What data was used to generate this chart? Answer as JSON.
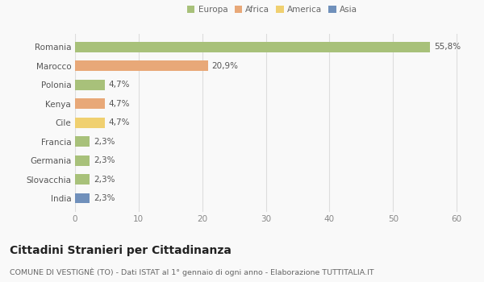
{
  "categories": [
    "India",
    "Slovacchia",
    "Germania",
    "Francia",
    "Cile",
    "Kenya",
    "Polonia",
    "Marocco",
    "Romania"
  ],
  "values": [
    2.3,
    2.3,
    2.3,
    2.3,
    4.7,
    4.7,
    4.7,
    20.9,
    55.8
  ],
  "colors": [
    "#7090bb",
    "#a8c17a",
    "#a8c17a",
    "#a8c17a",
    "#f0d070",
    "#e8a878",
    "#a8c17a",
    "#e8a878",
    "#a8c17a"
  ],
  "bar_labels": [
    "2,3%",
    "2,3%",
    "2,3%",
    "2,3%",
    "4,7%",
    "4,7%",
    "4,7%",
    "20,9%",
    "55,8%"
  ],
  "xlim": [
    0,
    62
  ],
  "xticks": [
    0,
    10,
    20,
    30,
    40,
    50,
    60
  ],
  "title": "Cittadini Stranieri per Cittadinanza",
  "subtitle": "COMUNE DI VESTIGNÈ (TO) - Dati ISTAT al 1° gennaio di ogni anno - Elaborazione TUTTITALIA.IT",
  "legend_labels": [
    "Europa",
    "Africa",
    "America",
    "Asia"
  ],
  "legend_colors": [
    "#a8c17a",
    "#e8a878",
    "#f0d070",
    "#7090bb"
  ],
  "background_color": "#f9f9f9",
  "grid_color": "#dddddd",
  "bar_height": 0.55,
  "label_fontsize": 7.5,
  "tick_fontsize": 7.5,
  "title_fontsize": 10,
  "subtitle_fontsize": 6.8
}
